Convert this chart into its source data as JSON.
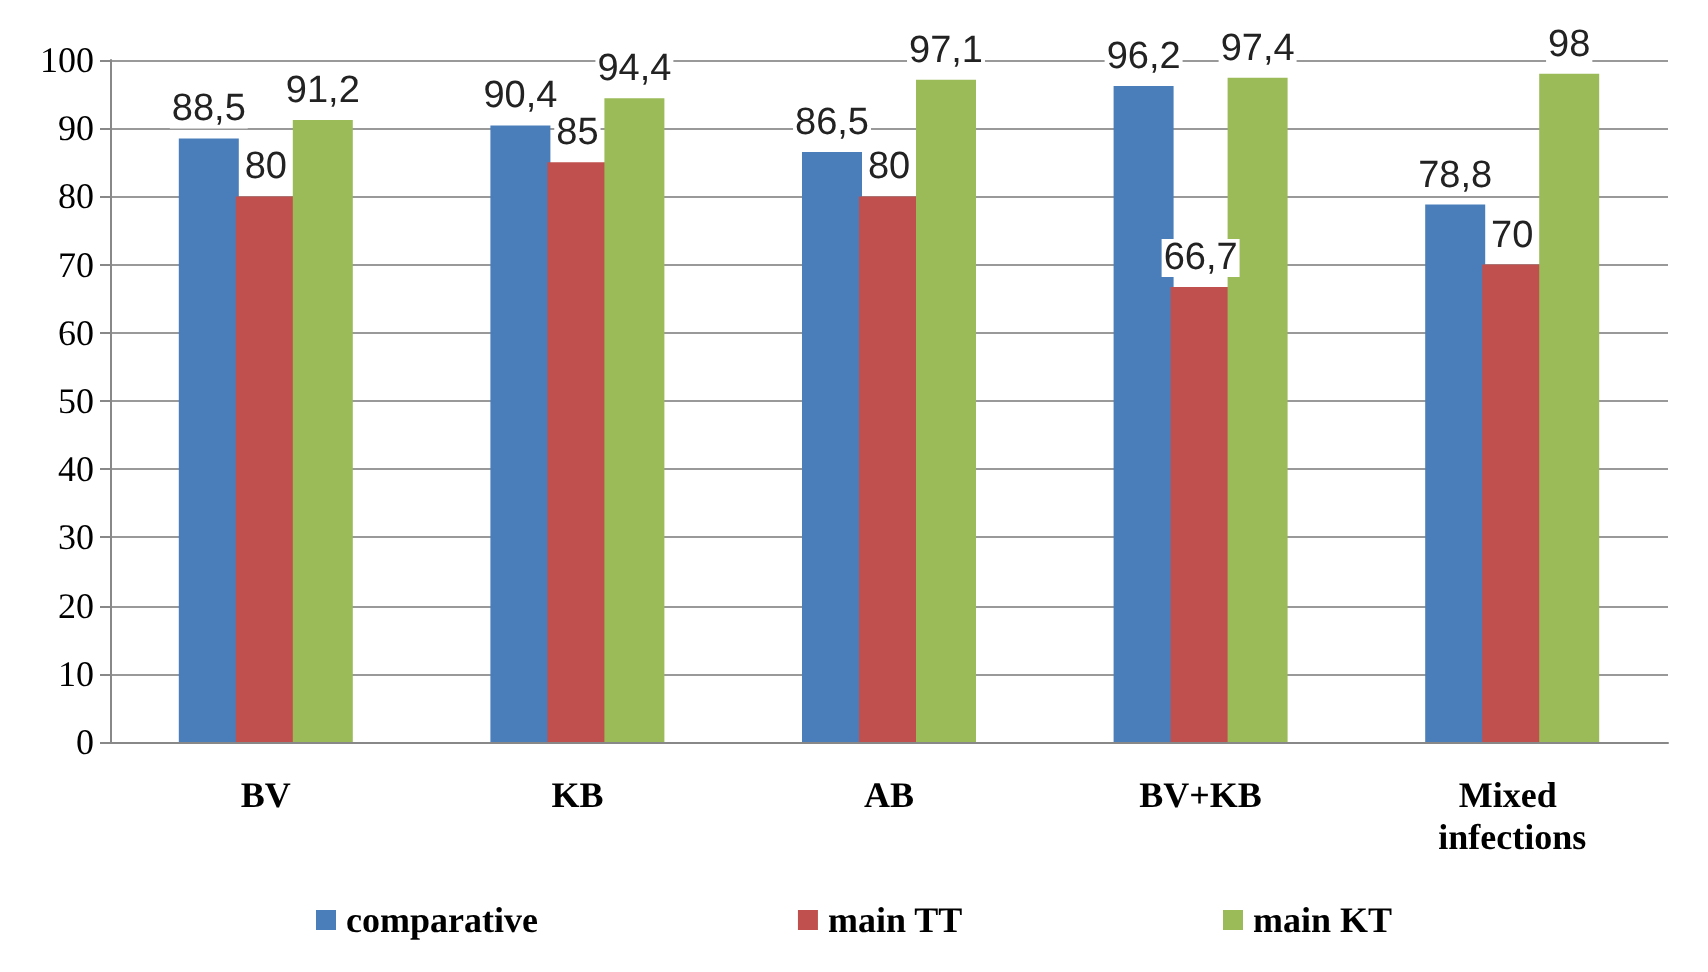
{
  "chart_data": {
    "type": "bar",
    "categories": [
      "BV",
      "KB",
      "AB",
      "BV+KB",
      "Mixed infections"
    ],
    "series": [
      {
        "name": "comparative",
        "color": "#4a7ebb",
        "values": [
          88.5,
          90.4,
          86.5,
          96.2,
          78.8
        ],
        "value_labels": [
          "88,5",
          "90,4",
          "86,5",
          "96,2",
          "78,8"
        ]
      },
      {
        "name": "main TT",
        "color": "#c0504d",
        "values": [
          80,
          85,
          80,
          66.7,
          70
        ],
        "value_labels": [
          "80",
          "85",
          "80",
          "66,7",
          "70"
        ]
      },
      {
        "name": "main KT",
        "color": "#9bbb59",
        "values": [
          91.2,
          94.4,
          97.1,
          97.4,
          98
        ],
        "value_labels": [
          "91,2",
          "94,4",
          "97,1",
          "97,4",
          "98"
        ]
      }
    ],
    "ylim": [
      0,
      100
    ],
    "yticks": [
      0,
      10,
      20,
      30,
      40,
      50,
      60,
      70,
      80,
      90,
      100
    ],
    "grid": "y",
    "legend": "bottom"
  }
}
